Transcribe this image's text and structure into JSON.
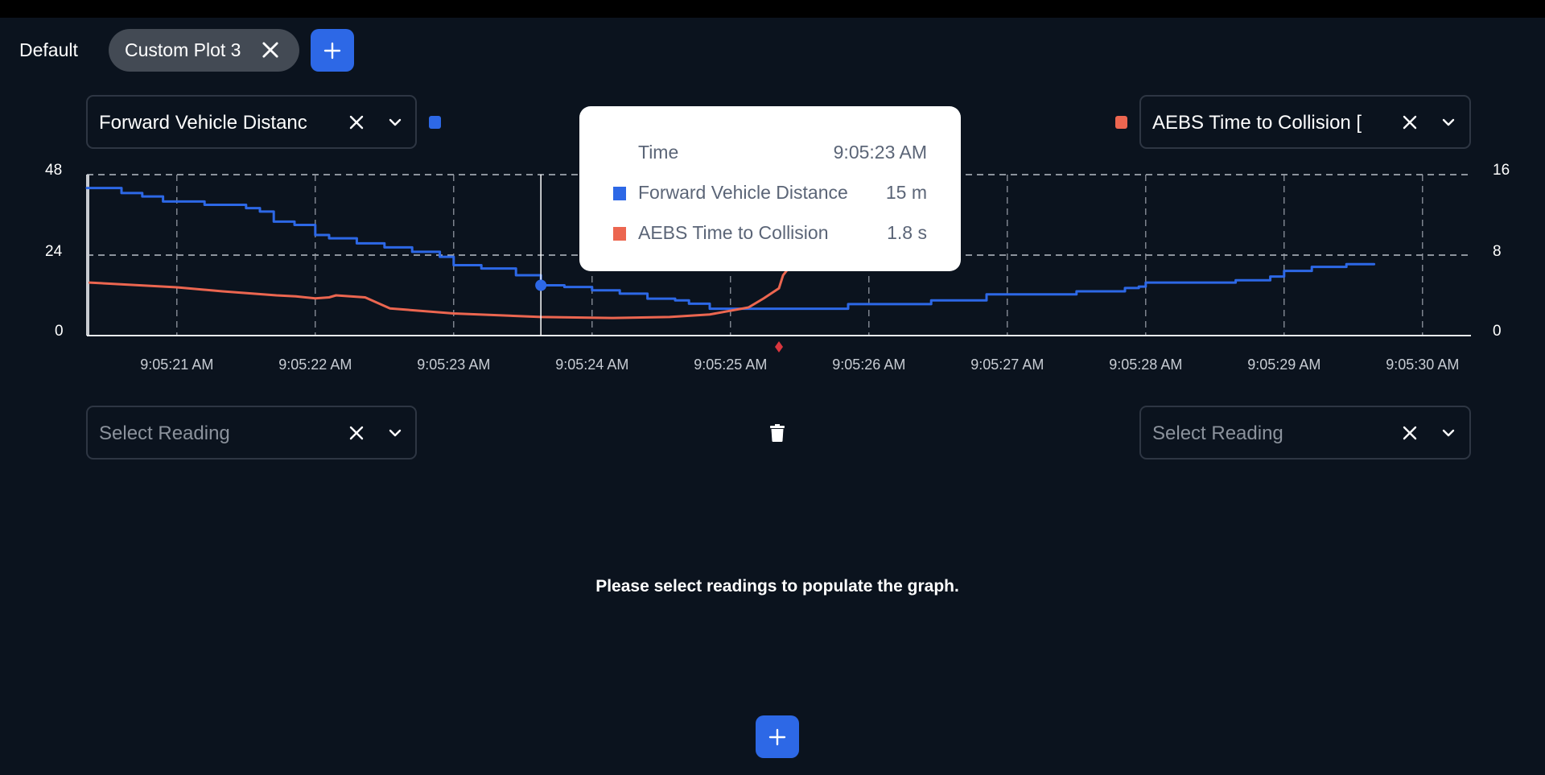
{
  "tabs": {
    "items": [
      {
        "label": "Default",
        "active": false
      },
      {
        "label": "Custom Plot 3",
        "active": true,
        "closable": true
      }
    ],
    "add_icon": "plus-icon"
  },
  "plot": {
    "left_reading": {
      "value": "Forward Vehicle Distanc",
      "color": "#2d68e6"
    },
    "right_reading": {
      "value": "AEBS Time to Collision [",
      "color": "#ec6650"
    },
    "clear_icon": "close-icon",
    "dropdown_icon": "chevron-down-icon"
  },
  "chart_data": {
    "type": "line",
    "x_unit": "time",
    "x_ticks": [
      "9:05:21 AM",
      "9:05:22 AM",
      "9:05:23 AM",
      "9:05:24 AM",
      "9:05:25 AM",
      "9:05:26 AM",
      "9:05:27 AM",
      "9:05:28 AM",
      "9:05:29 AM",
      "9:05:30 AM"
    ],
    "x_tick_seconds": [
      21,
      22,
      23,
      24,
      25,
      26,
      27,
      28,
      29,
      30
    ],
    "x_range_seconds": [
      20.35,
      30.35
    ],
    "y_left": {
      "ticks": [
        "0",
        "24",
        "48"
      ],
      "range": [
        0,
        48
      ]
    },
    "y_right": {
      "ticks": [
        "0",
        "8",
        "16"
      ],
      "range": [
        0,
        16
      ]
    },
    "grid": true,
    "series": [
      {
        "name": "Forward Vehicle Distance",
        "axis": "left",
        "color": "#2d68e6",
        "step": true,
        "points": [
          [
            20.35,
            44
          ],
          [
            20.6,
            42.5
          ],
          [
            20.75,
            41.5
          ],
          [
            20.9,
            40
          ],
          [
            21.2,
            39
          ],
          [
            21.5,
            38
          ],
          [
            21.6,
            37
          ],
          [
            21.7,
            34
          ],
          [
            21.85,
            33
          ],
          [
            22,
            30
          ],
          [
            22.1,
            29
          ],
          [
            22.3,
            27.5
          ],
          [
            22.5,
            26.3
          ],
          [
            22.7,
            25
          ],
          [
            22.9,
            23.5
          ],
          [
            23.0,
            21
          ],
          [
            23.2,
            20
          ],
          [
            23.45,
            18
          ],
          [
            23.63,
            15
          ],
          [
            23.8,
            14.5
          ],
          [
            24,
            13.5
          ],
          [
            24.2,
            12.5
          ],
          [
            24.4,
            11
          ],
          [
            24.6,
            10.5
          ],
          [
            24.7,
            9.5
          ],
          [
            24.85,
            8
          ],
          [
            25.75,
            8
          ],
          [
            25.85,
            9.4
          ],
          [
            26.35,
            9.4
          ],
          [
            26.45,
            10.5
          ],
          [
            26.75,
            10.5
          ],
          [
            26.85,
            12.3
          ],
          [
            27.45,
            12.3
          ],
          [
            27.5,
            13.2
          ],
          [
            27.75,
            13.2
          ],
          [
            27.85,
            14.2
          ],
          [
            27.95,
            14.6
          ],
          [
            28.0,
            15.8
          ],
          [
            28.6,
            15.8
          ],
          [
            28.65,
            16.5
          ],
          [
            28.85,
            16.5
          ],
          [
            28.9,
            17.6
          ],
          [
            29.0,
            19.3
          ],
          [
            29.15,
            19.3
          ],
          [
            29.2,
            20.5
          ],
          [
            29.4,
            20.5
          ],
          [
            29.45,
            21.3
          ],
          [
            29.65,
            21.3
          ]
        ]
      },
      {
        "name": "AEBS Time to Collision",
        "axis": "right",
        "color": "#ec6650",
        "step": false,
        "points": [
          [
            20.37,
            5.27
          ],
          [
            21,
            4.8
          ],
          [
            21.33,
            4.4
          ],
          [
            21.72,
            4.0
          ],
          [
            21.86,
            3.9
          ],
          [
            22,
            3.7
          ],
          [
            22.1,
            3.8
          ],
          [
            22.15,
            4.0
          ],
          [
            22.36,
            3.8
          ],
          [
            22.54,
            2.7
          ],
          [
            23,
            2.2
          ],
          [
            23.63,
            1.85
          ],
          [
            24.14,
            1.75
          ],
          [
            24.56,
            1.85
          ],
          [
            24.85,
            2.1
          ],
          [
            25.13,
            2.8
          ],
          [
            25.24,
            3.7
          ],
          [
            25.35,
            4.7
          ],
          [
            25.38,
            6
          ],
          [
            25.42,
            6.7
          ],
          [
            25.5,
            10
          ]
        ]
      }
    ],
    "cursor": {
      "time_seconds": 23.63
    },
    "event_marker": {
      "time_seconds": 25.35,
      "color": "#d9363e"
    }
  },
  "tooltip": {
    "time_label": "Time",
    "time_value": "9:05:23 AM",
    "rows": [
      {
        "label": "Forward Vehicle Distance",
        "value": "15 m",
        "color": "#2d68e6"
      },
      {
        "label": "AEBS Time to Collision",
        "value": "1.8 s",
        "color": "#ec6650"
      }
    ]
  },
  "second_plot": {
    "left_placeholder": "Select Reading",
    "right_placeholder": "Select Reading",
    "delete_icon": "trash-icon",
    "message": "Please select readings to populate the graph."
  },
  "add_plot_icon": "plus-icon"
}
